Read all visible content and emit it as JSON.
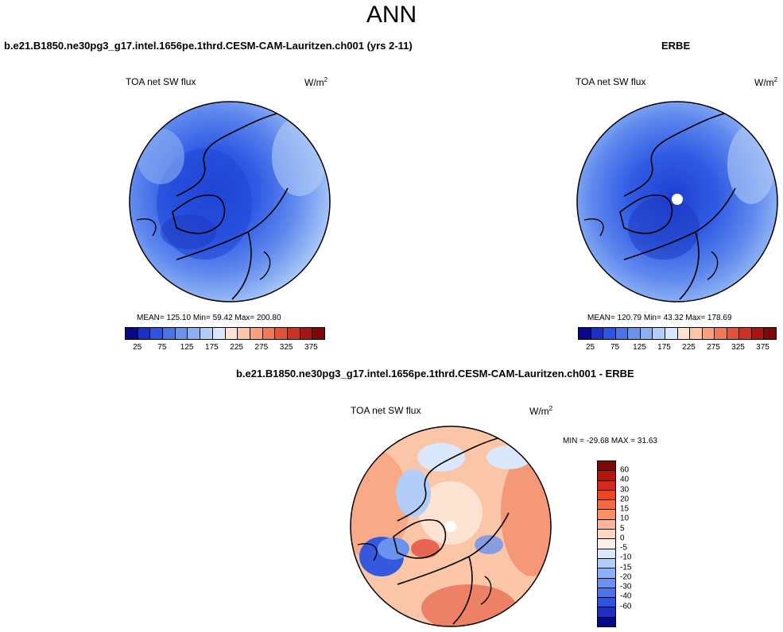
{
  "title": "ANN",
  "panels": [
    {
      "header": "b.e21.B1850.ne30pg3_g17.intel.1656pe.1thrd.CESM-CAM-Lauritzen.ch001 (yrs 2-11)",
      "variable": "TOA net SW flux",
      "units_base": "W/m",
      "units_exp": "2",
      "stats": "MEAN= 125.10  Min=  59.42  Max= 200.80",
      "mean": 125.1,
      "min": 59.42,
      "max": 200.8,
      "colorbar_ticks": [
        "25",
        "75",
        "125",
        "175",
        "225",
        "275",
        "325",
        "375"
      ]
    },
    {
      "header": "ERBE",
      "variable": "TOA net SW flux",
      "units_base": "W/m",
      "units_exp": "2",
      "stats": "MEAN= 120.79  Min=  43.32  Max= 178.69",
      "mean": 120.79,
      "min": 43.32,
      "max": 178.69,
      "colorbar_ticks": [
        "25",
        "75",
        "125",
        "175",
        "225",
        "275",
        "325",
        "375"
      ]
    },
    {
      "header": "b.e21.B1850.ne30pg3_g17.intel.1656pe.1thrd.CESM-CAM-Lauritzen.ch001 - ERBE",
      "variable": "TOA net SW flux",
      "units_base": "W/m",
      "units_exp": "2",
      "stats": "MIN = -29.68 MAX = 31.63",
      "min": -29.68,
      "max": 31.63,
      "colorbar_ticks": [
        "60",
        "40",
        "30",
        "20",
        "15",
        "10",
        "5",
        "0",
        "-5",
        "-10",
        "-15",
        "-20",
        "-30",
        "-40",
        "-60"
      ]
    }
  ],
  "colors": {
    "abs_scale": [
      "#08088a",
      "#1c2fc4",
      "#2b55e0",
      "#4a73ea",
      "#6a92ef",
      "#8cb0f4",
      "#b1cdf8",
      "#d9e8fc",
      "#fde4d2",
      "#fbc5a8",
      "#f7a17e",
      "#f07a56",
      "#e2543a",
      "#c93224",
      "#a31614",
      "#7c0808"
    ],
    "diff_scale": [
      "#7c0808",
      "#b3150f",
      "#d8261a",
      "#ef4523",
      "#f7693f",
      "#fa9068",
      "#fcb597",
      "#fed6c2",
      "#fdf0e5",
      "#d9e8fc",
      "#b1cdf8",
      "#8cb0f4",
      "#6a92ef",
      "#4a73ea",
      "#2b55e0",
      "#1c2fc4",
      "#08088a"
    ]
  }
}
